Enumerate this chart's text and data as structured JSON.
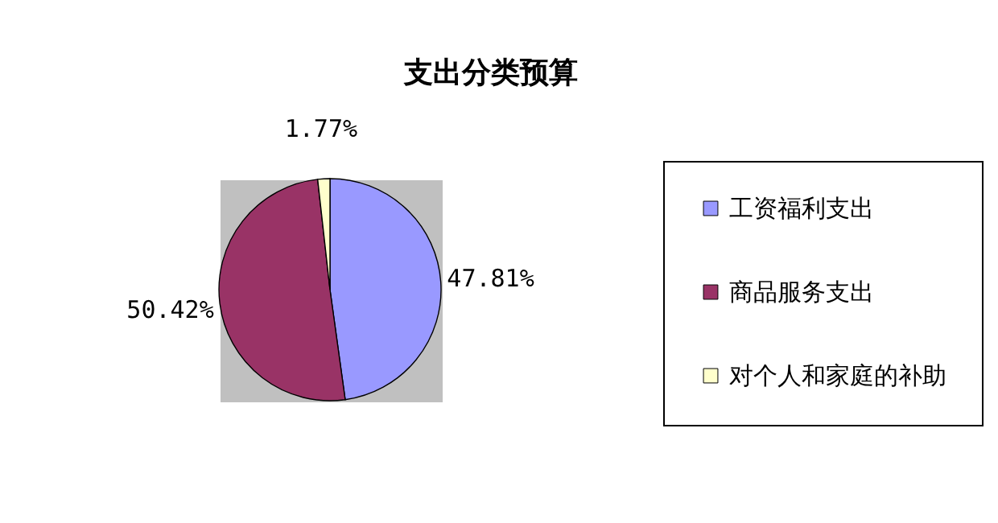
{
  "chart_data": {
    "type": "pie",
    "title": "支出分类预算",
    "categories": [
      "工资福利支出",
      "商品服务支出",
      "对个人和家庭的补助"
    ],
    "values": [
      47.81,
      50.42,
      1.77
    ],
    "colors": [
      "#9999ff",
      "#993366",
      "#ffffcc"
    ],
    "value_labels": [
      "47.81%",
      "50.42%",
      "1.77%"
    ],
    "legend": "right"
  }
}
